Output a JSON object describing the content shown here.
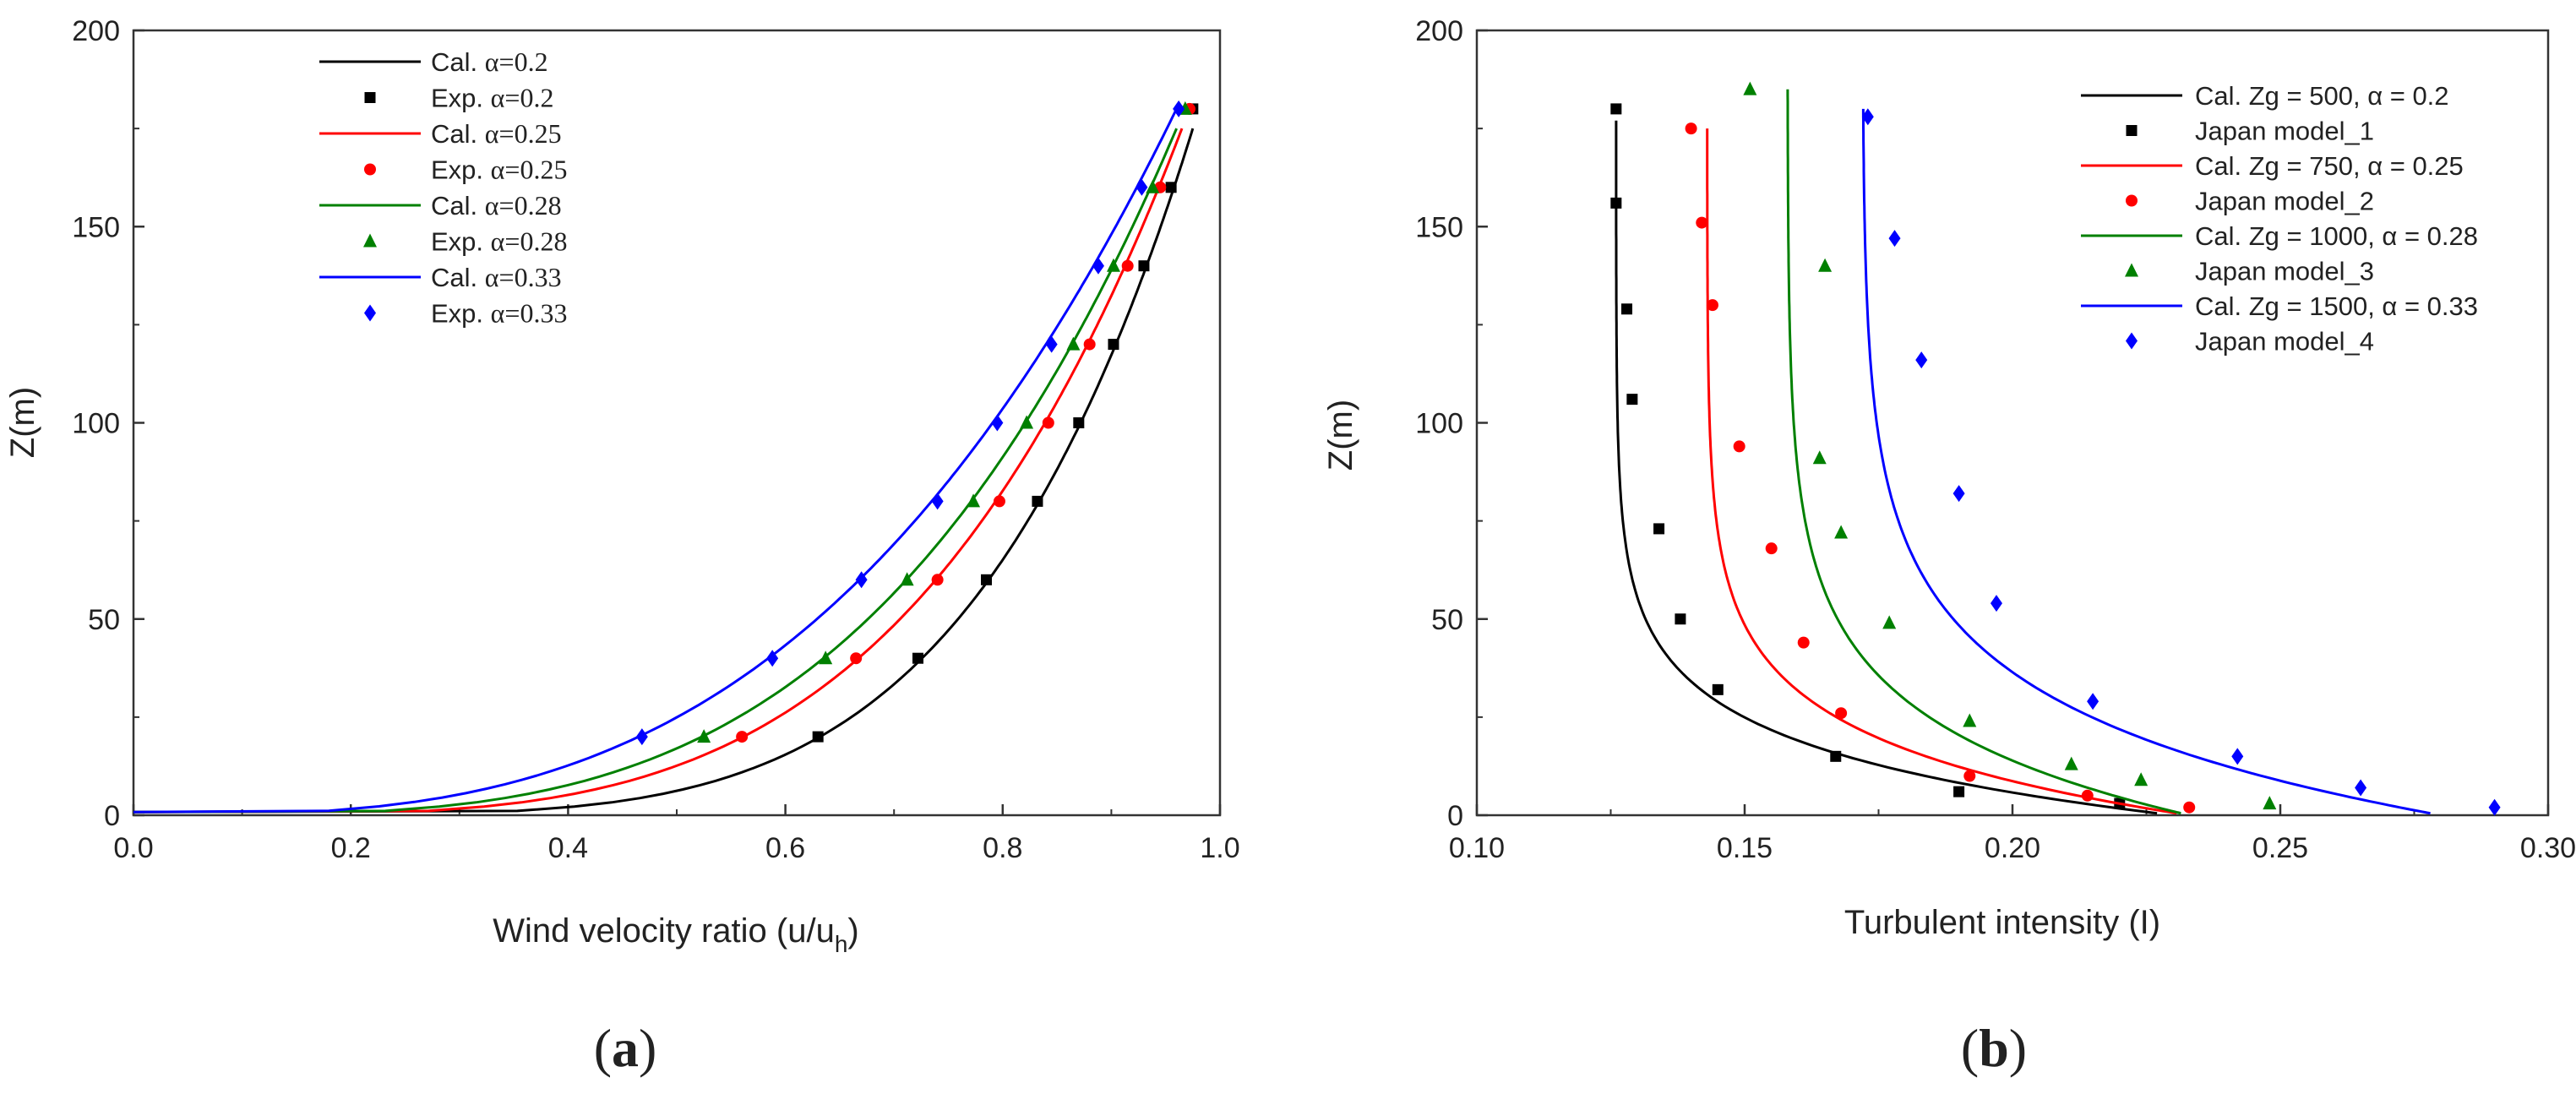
{
  "chart_data": [
    {
      "type": "line",
      "panel_label": "a",
      "xlabel": "Wind velocity ratio (u/u",
      "xlabel_sub": "h",
      "xlabel_end": ")",
      "ylabel": "Z(m)",
      "xlim": [
        0.0,
        1.0
      ],
      "ylim": [
        0,
        200
      ],
      "xticks": [
        "0.0",
        "0.2",
        "0.4",
        "0.6",
        "0.8",
        "1.0"
      ],
      "yticks": [
        "0",
        "50",
        "100",
        "150",
        "200"
      ],
      "series": [
        {
          "name": "Cal. α=0.2",
          "legend_prefix": "Cal.",
          "legend_param": "α=0.2",
          "kind": "line",
          "color": "#000000",
          "alpha": 0.2,
          "zmax": 175,
          "umax": 0.975
        },
        {
          "name": "Exp. α=0.2",
          "legend_prefix": "Exp.",
          "legend_param": "α=0.2",
          "kind": "marker",
          "marker": "square",
          "color": "#000000",
          "x": [
            0.63,
            0.722,
            0.785,
            0.832,
            0.87,
            0.902,
            0.93,
            0.955,
            0.975
          ],
          "y": [
            20,
            40,
            60,
            80,
            100,
            120,
            140,
            160,
            180
          ]
        },
        {
          "name": "Cal. α=0.25",
          "legend_prefix": "Cal.",
          "legend_param": "α=0.25",
          "kind": "line",
          "color": "#ff0000",
          "alpha": 0.25,
          "zmax": 175,
          "umax": 0.965
        },
        {
          "name": "Exp. α=0.25",
          "legend_prefix": "Exp.",
          "legend_param": "α=0.25",
          "kind": "marker",
          "marker": "circle",
          "color": "#ff0000",
          "x": [
            0.56,
            0.665,
            0.74,
            0.797,
            0.842,
            0.88,
            0.915,
            0.945,
            0.972
          ],
          "y": [
            20,
            40,
            60,
            80,
            100,
            120,
            140,
            160,
            180
          ]
        },
        {
          "name": "Cal. α=0.28",
          "legend_prefix": "Cal.",
          "legend_param": "α=0.28",
          "kind": "line",
          "color": "#008000",
          "alpha": 0.28,
          "zmax": 175,
          "umax": 0.96
        },
        {
          "name": "Exp. α=0.28",
          "legend_prefix": "Exp.",
          "legend_param": "α=0.28",
          "kind": "marker",
          "marker": "triangle",
          "color": "#008000",
          "x": [
            0.525,
            0.637,
            0.712,
            0.773,
            0.822,
            0.865,
            0.902,
            0.938,
            0.968
          ],
          "y": [
            20,
            40,
            60,
            80,
            100,
            120,
            140,
            160,
            180
          ]
        },
        {
          "name": "Cal. α=0.33",
          "legend_prefix": "Cal.",
          "legend_param": "α=0.33",
          "kind": "line",
          "color": "#0000ff",
          "alpha": 0.33,
          "zmax": 180,
          "umax": 0.96
        },
        {
          "name": "Exp. α=0.33",
          "legend_prefix": "Exp.",
          "legend_param": "α=0.33",
          "kind": "marker",
          "marker": "diamond",
          "color": "#0000ff",
          "x": [
            0.468,
            0.588,
            0.67,
            0.74,
            0.795,
            0.845,
            0.888,
            0.928,
            0.962
          ],
          "y": [
            20,
            40,
            60,
            80,
            100,
            120,
            140,
            160,
            180
          ]
        }
      ]
    },
    {
      "type": "line",
      "panel_label": "b",
      "xlabel": "Turbulent intensity (I)",
      "ylabel": "Z(m)",
      "xlim": [
        0.1,
        0.3
      ],
      "ylim": [
        0,
        200
      ],
      "xticks": [
        "0.10",
        "0.15",
        "0.20",
        "0.25",
        "0.30"
      ],
      "yticks": [
        "0",
        "50",
        "100",
        "150",
        "200"
      ],
      "series": [
        {
          "name": "Cal.  Zg = 500,   α = 0.2",
          "kind": "line",
          "color": "#000000",
          "i0": 0.126,
          "a": 0.104,
          "k": 17,
          "zmax": 177,
          "ztop": 0.5
        },
        {
          "name": "Japan model_1",
          "kind": "marker",
          "marker": "square",
          "color": "#000000",
          "x": [
            0.22,
            0.19,
            0.167,
            0.145,
            0.138,
            0.134,
            0.129,
            0.128,
            0.126,
            0.126
          ],
          "y": [
            3,
            6,
            15,
            32,
            50,
            73,
            106,
            129,
            156,
            180
          ]
        },
        {
          "name": "Cal.  Zg = 750,    α = 0.25",
          "kind": "line",
          "color": "#ff0000",
          "i0": 0.143,
          "a": 0.09,
          "k": 19,
          "zmax": 175,
          "ztop": 0.5
        },
        {
          "name": "Japan model_2",
          "kind": "marker",
          "marker": "circle",
          "color": "#ff0000",
          "x": [
            0.233,
            0.214,
            0.192,
            0.168,
            0.161,
            0.155,
            0.149,
            0.144,
            0.142,
            0.14
          ],
          "y": [
            2,
            5,
            10,
            26,
            44,
            68,
            94,
            130,
            151,
            175
          ]
        },
        {
          "name": "Cal.  Zg = 1000,  α = 0.28",
          "kind": "line",
          "color": "#008000",
          "i0": 0.158,
          "a": 0.075,
          "k": 24,
          "zmax": 185,
          "ztop": 0.5
        },
        {
          "name": "Japan model_3",
          "kind": "marker",
          "marker": "triangle",
          "color": "#008000",
          "x": [
            0.248,
            0.224,
            0.211,
            0.192,
            0.177,
            0.168,
            0.164,
            0.165,
            0.151
          ],
          "y": [
            3,
            9,
            13,
            24,
            49,
            72,
            91,
            140,
            185
          ]
        },
        {
          "name": "Cal.  Zg = 1500,  α = 0.33",
          "kind": "line",
          "color": "#0000ff",
          "i0": 0.172,
          "a": 0.108,
          "k": 27,
          "zmax": 180,
          "ztop": 0.5
        },
        {
          "name": "Japan model_4",
          "kind": "marker",
          "marker": "diamond",
          "color": "#0000ff",
          "x": [
            0.29,
            0.265,
            0.242,
            0.215,
            0.197,
            0.19,
            0.183,
            0.178,
            0.173
          ],
          "y": [
            2,
            7,
            15,
            29,
            54,
            82,
            116,
            147,
            178
          ]
        }
      ]
    }
  ]
}
